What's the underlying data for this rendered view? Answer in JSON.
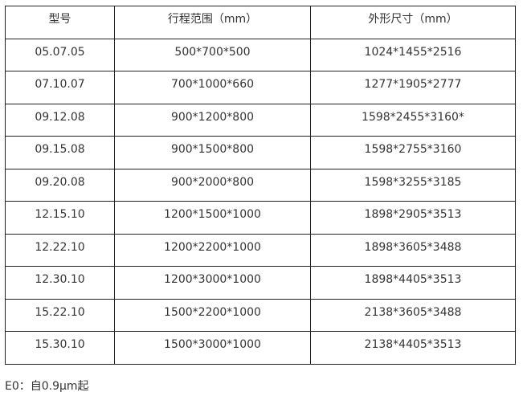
{
  "table": {
    "headers": [
      "型号",
      "行程范围（mm）",
      "外形尺寸（mm）"
    ],
    "rows": [
      [
        "05.07.05",
        "500*700*500",
        "1024*1455*2516"
      ],
      [
        "07.10.07",
        "700*1000*660",
        "1277*1905*2777"
      ],
      [
        "09.12.08",
        "900*1200*800",
        "1598*2455*3160*"
      ],
      [
        "09.15.08",
        "900*1500*800",
        "1598*2755*3160"
      ],
      [
        "09.20.08",
        "900*2000*800",
        "1598*3255*3185"
      ],
      [
        "12.15.10",
        "1200*1500*1000",
        "1898*2905*3513"
      ],
      [
        "12.22.10",
        "1200*2200*1000",
        "1898*3605*3488"
      ],
      [
        "12.30.10",
        "1200*3000*1000",
        "1898*4405*3513"
      ],
      [
        "15.22.10",
        "1500*2200*1000",
        "2138*3605*3488"
      ],
      [
        "15.30.10",
        "1500*3000*1000",
        "2138*4405*3513"
      ]
    ]
  },
  "note": "E0：自0.9μm起"
}
